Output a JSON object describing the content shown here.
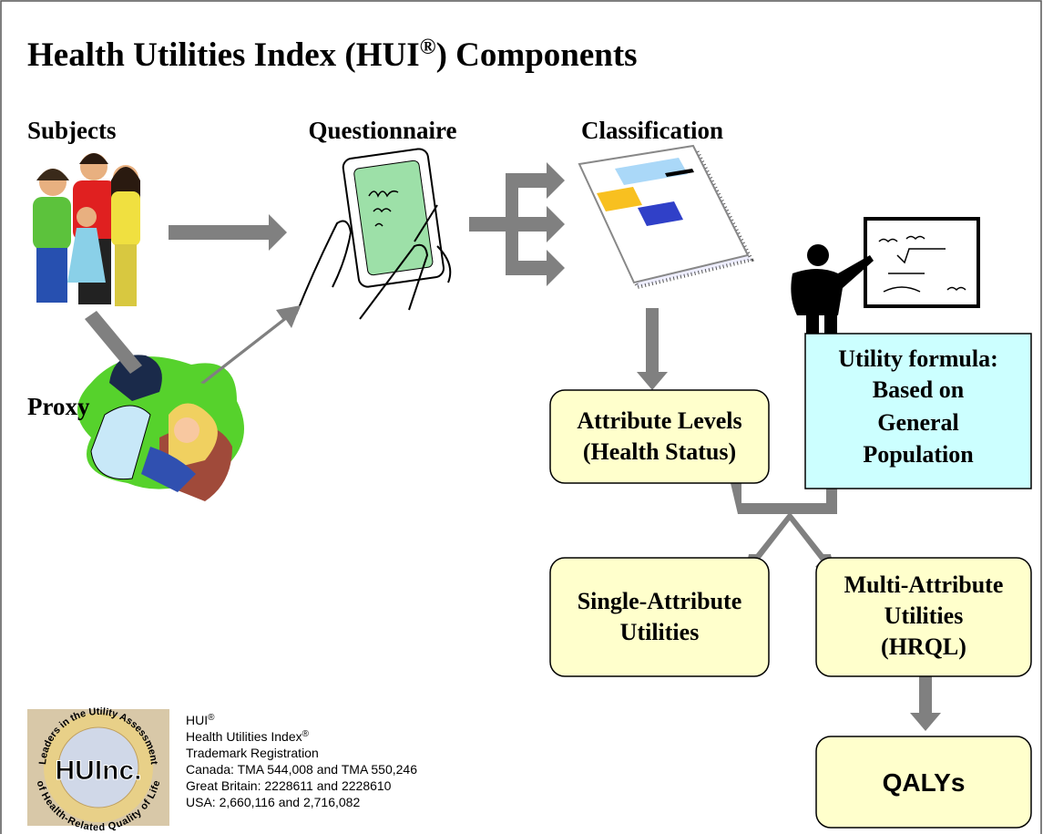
{
  "title": {
    "text": "Health Utilities Index (HUI",
    "mark": "®",
    "rest": ") Components"
  },
  "stages": {
    "subjects": "Subjects",
    "questionnaire": "Questionnaire",
    "classification": "Classification",
    "proxy": "Proxy"
  },
  "boxes": {
    "attribute_levels": [
      "Attribute Levels",
      "(Health Status)"
    ],
    "utility_formula": [
      "Utility formula:",
      "Based on",
      "General",
      "Population"
    ],
    "single_attribute": [
      "Single-Attribute",
      "Utilities"
    ],
    "multi_attribute": [
      "Multi-Attribute",
      "Utilities",
      "(HRQL)"
    ],
    "qalys": [
      "QALYs"
    ]
  },
  "logo": {
    "name": "HUInc.",
    "ring_top": "Leaders in the Utility Assessment",
    "ring_bottom": "of Health-Related Quality of Life"
  },
  "trademark": {
    "lines": [
      {
        "text": "HUI",
        "mark": "®"
      },
      {
        "text": "Health Utilities Index",
        "mark": "®"
      },
      {
        "text": "Trademark Registration"
      },
      {
        "text": "Canada: TMA 544,008 and TMA 550,246"
      },
      {
        "text": "Great Britain: 2228611 and 2228610"
      },
      {
        "text": "USA: 2,660,116 and 2,716,082"
      }
    ]
  }
}
